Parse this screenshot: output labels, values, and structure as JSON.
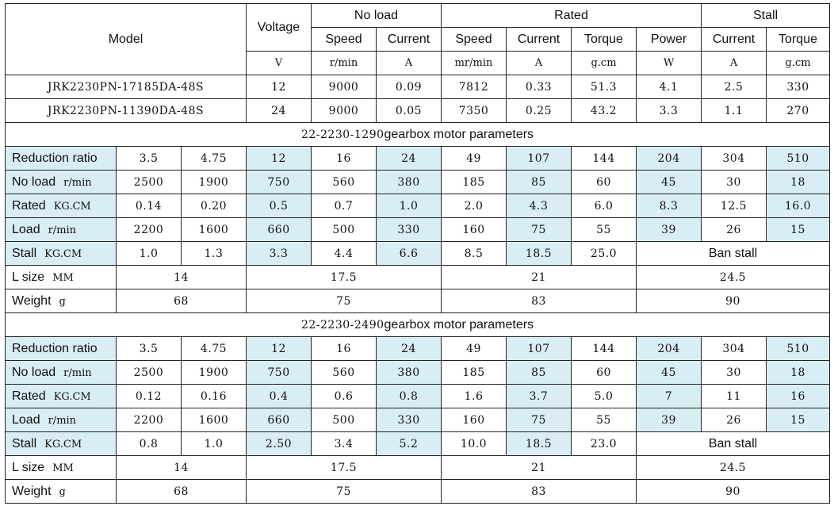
{
  "header": {
    "model": "Model",
    "voltage": "Voltage",
    "no_load": "No load",
    "rated": "Rated",
    "stall": "Stall",
    "speed": "Speed",
    "current": "Current",
    "torque": "Torque",
    "power": "Power",
    "units": [
      "V",
      "r/min",
      "A",
      "mr/min",
      "A",
      "g.cm",
      "W",
      "A",
      "g.cm"
    ]
  },
  "motors": [
    {
      "model": "JRK2230PN-17185DA-48S",
      "values": [
        "12",
        "9000",
        "0.09",
        "7812",
        "0.33",
        "51.3",
        "4.1",
        "2.5",
        "330"
      ]
    },
    {
      "model": "JRK2230PN-11390DA-48S",
      "values": [
        "24",
        "9000",
        "0.05",
        "7350",
        "0.25",
        "43.2",
        "3.3",
        "1.1",
        "270"
      ]
    }
  ],
  "labels": {
    "reduction_ratio": "Reduction ratio",
    "no_load": "No load",
    "rated": "Rated",
    "load": "Load",
    "stall": "Stall",
    "l_size": "L size",
    "weight": "Weight",
    "unit_rmin": "r/min",
    "unit_kgcm": "KG.CM",
    "unit_mm": "MM",
    "unit_g": "g",
    "ban_stall": "Ban stall"
  },
  "sections": [
    {
      "title_code": "22-2230-1290",
      "title_text": "gearbox motor parameters",
      "ratio": [
        "3.5",
        "4.75",
        "12",
        "16",
        "24",
        "49",
        "107",
        "144",
        "204",
        "304",
        "510"
      ],
      "no_load": [
        "2500",
        "1900",
        "750",
        "560",
        "380",
        "185",
        "85",
        "60",
        "45",
        "30",
        "18"
      ],
      "rated": [
        "0.14",
        "0.20",
        "0.5",
        "0.7",
        "1.0",
        "2.0",
        "4.3",
        "6.0",
        "8.3",
        "12.5",
        "16.0"
      ],
      "load": [
        "2200",
        "1600",
        "660",
        "500",
        "330",
        "160",
        "75",
        "55",
        "39",
        "26",
        "15"
      ],
      "stall": [
        "1.0",
        "1.3",
        "3.3",
        "4.4",
        "6.6",
        "8.5",
        "18.5",
        "25.0"
      ],
      "l_size": [
        "14",
        "17.5",
        "21",
        "24.5"
      ],
      "weight": [
        "68",
        "75",
        "83",
        "90"
      ]
    },
    {
      "title_code": "22-2230-2490",
      "title_text": "gearbox motor parameters",
      "ratio": [
        "3.5",
        "4.75",
        "12",
        "16",
        "24",
        "49",
        "107",
        "144",
        "204",
        "304",
        "510"
      ],
      "no_load": [
        "2500",
        "1900",
        "750",
        "560",
        "380",
        "185",
        "85",
        "60",
        "45",
        "30",
        "18"
      ],
      "rated": [
        "0.12",
        "0.16",
        "0.4",
        "0.6",
        "0.8",
        "1.6",
        "3.7",
        "5.0",
        "7",
        "11",
        "16"
      ],
      "load": [
        "2200",
        "1600",
        "660",
        "500",
        "330",
        "160",
        "75",
        "55",
        "39",
        "26",
        "15"
      ],
      "stall": [
        "0.8",
        "1.0",
        "2.50",
        "3.4",
        "5.2",
        "10.0",
        "18.5",
        "23.0"
      ],
      "l_size": [
        "14",
        "17.5",
        "21",
        "24.5"
      ],
      "weight": [
        "68",
        "75",
        "83",
        "90"
      ]
    }
  ],
  "colors": {
    "highlight": "#d9edf4",
    "border": "#222222"
  }
}
